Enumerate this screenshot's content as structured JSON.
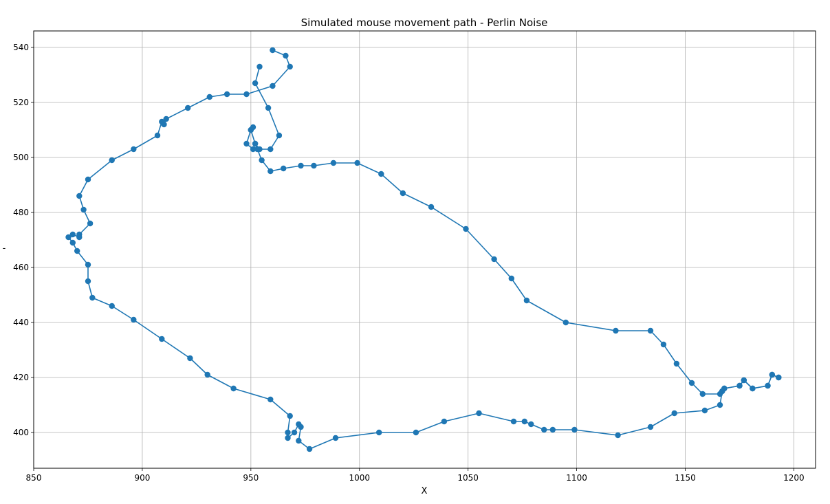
{
  "chart_data": {
    "type": "line",
    "title": "Simulated mouse movement path - Perlin Noise",
    "xlabel": "X",
    "ylabel": "-",
    "xlim": [
      850,
      1210
    ],
    "ylim": [
      387,
      546
    ],
    "xticks": [
      850,
      900,
      950,
      1000,
      1050,
      1100,
      1150,
      1200
    ],
    "yticks": [
      400,
      420,
      440,
      460,
      480,
      500,
      520,
      540
    ],
    "grid": true,
    "color": "#1f77b4",
    "markers": true,
    "series": [
      {
        "x": [
          960,
          966,
          968,
          960,
          948,
          939,
          931,
          921,
          911,
          910,
          909,
          907,
          896,
          886,
          875,
          871,
          873,
          876,
          871,
          871,
          868,
          866,
          868,
          870,
          875,
          875,
          877,
          886,
          896,
          909,
          922,
          930,
          942,
          959,
          968,
          967,
          967,
          970,
          972,
          973,
          972,
          977,
          989,
          1009,
          1026,
          1039,
          1055,
          1071,
          1076,
          1079,
          1085,
          1089,
          1099,
          1119,
          1134,
          1145,
          1159,
          1166,
          1167,
          1168,
          1175,
          1177,
          1181,
          1188,
          1190,
          1193
        ],
        "y": [
          539,
          537,
          533,
          526,
          523,
          523,
          522,
          518,
          514,
          512,
          513,
          508,
          503,
          499,
          492,
          486,
          481,
          476,
          472,
          471,
          472,
          471,
          469,
          466,
          461,
          455,
          449,
          446,
          441,
          434,
          427,
          421,
          416,
          412,
          406,
          400,
          398,
          400,
          403,
          402,
          397,
          394,
          398,
          400,
          400,
          404,
          407,
          404,
          404,
          403,
          401,
          401,
          401,
          399,
          402,
          407,
          408,
          410,
          415,
          416,
          417,
          419,
          416,
          417,
          421,
          420
        ]
      },
      {
        "x": [
          1193,
          1190,
          1188,
          1181,
          1177,
          1175,
          1168,
          1167,
          1166,
          1158,
          1153,
          1146,
          1140,
          1134,
          1118,
          1095,
          1077,
          1070,
          1062,
          1049,
          1033,
          1020,
          1010,
          999,
          988,
          979,
          973,
          965,
          959,
          955,
          953,
          952,
          951,
          948,
          950,
          951,
          950,
          952,
          954,
          959,
          963,
          958,
          952,
          954
        ],
        "y": [
          420,
          421,
          417,
          416,
          419,
          417,
          416,
          415,
          414,
          414,
          418,
          425,
          432,
          437,
          437,
          440,
          448,
          456,
          463,
          474,
          482,
          487,
          494,
          498,
          498,
          497,
          497,
          496,
          495,
          499,
          503,
          505,
          503,
          505,
          510,
          511,
          510,
          505,
          503,
          503,
          508,
          518,
          527,
          533
        ]
      }
    ]
  }
}
